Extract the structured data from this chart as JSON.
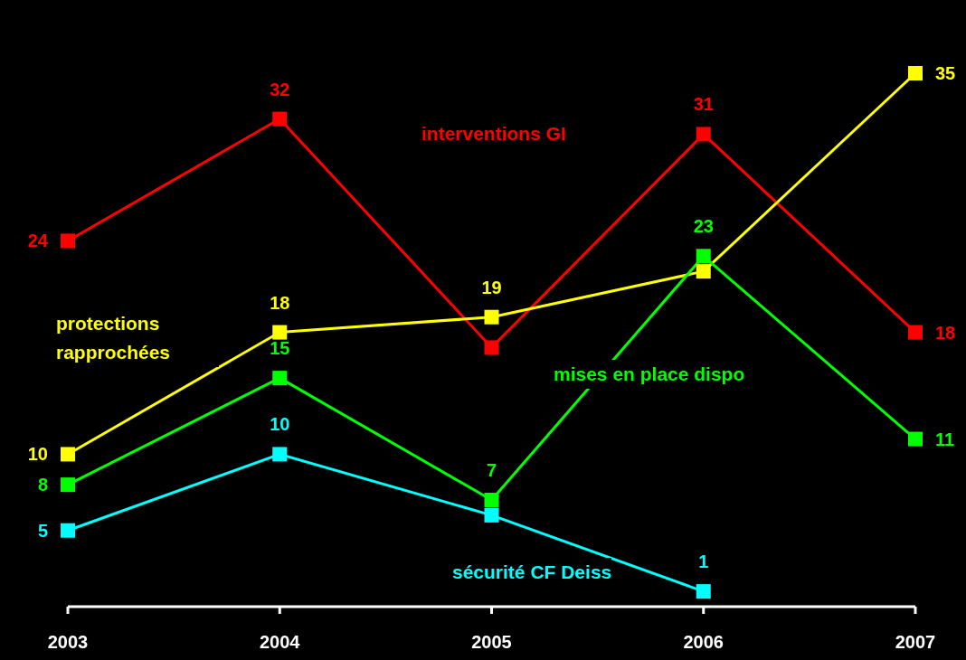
{
  "chart_data": {
    "type": "line",
    "categories": [
      "2003",
      "2004",
      "2005",
      "2006",
      "2007"
    ],
    "legend": false,
    "marker": "square",
    "line_style": "solid",
    "series": [
      {
        "name": "interventions GI",
        "color": "#ff0000",
        "values": [
          24,
          32,
          17,
          31,
          18
        ],
        "value_labels": [
          "24",
          "32",
          null,
          "31",
          "18"
        ]
      },
      {
        "name": "protections rapprochées",
        "color": "#ffff00",
        "values": [
          10,
          18,
          19,
          22,
          35
        ],
        "value_labels": [
          "10",
          "18",
          "19",
          null,
          "35"
        ]
      },
      {
        "name": "mises en place dispo",
        "color": "#00ff00",
        "values": [
          8,
          15,
          7,
          23,
          11
        ],
        "value_labels": [
          "8",
          "15",
          "7",
          "23",
          "11"
        ]
      },
      {
        "name": "sécurité CF Deiss",
        "color": "#00ffff",
        "values": [
          5,
          10,
          6,
          1,
          null
        ],
        "value_labels": [
          "5",
          "10",
          null,
          "1",
          null
        ]
      }
    ]
  }
}
